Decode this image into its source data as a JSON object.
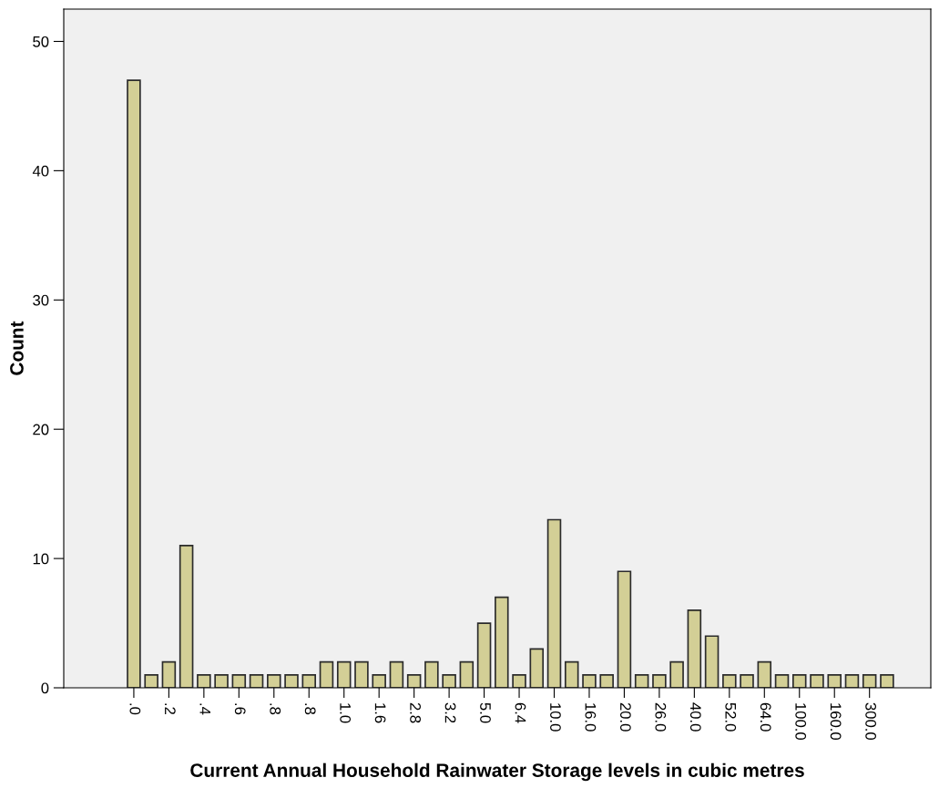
{
  "chart_data": {
    "type": "bar",
    "xlabel": "Current Annual Household Rainwater Storage levels in cubic metres",
    "ylabel": "Count",
    "categories": [
      ".0",
      null,
      ".2",
      null,
      ".4",
      null,
      ".6",
      null,
      ".8",
      null,
      ".8",
      null,
      "1.0",
      null,
      "1.6",
      null,
      "2.8",
      null,
      "3.2",
      null,
      "5.0",
      null,
      "6.4",
      null,
      "10.0",
      null,
      "16.0",
      null,
      "20.0",
      null,
      "26.0",
      null,
      "40.0",
      null,
      "52.0",
      null,
      "64.0",
      null,
      "100.0",
      null,
      "160.0",
      null,
      "300.0",
      null
    ],
    "values": [
      47,
      1,
      2,
      11,
      1,
      1,
      1,
      1,
      1,
      1,
      1,
      2,
      2,
      2,
      1,
      2,
      1,
      2,
      1,
      2,
      5,
      7,
      1,
      3,
      13,
      2,
      1,
      1,
      9,
      1,
      1,
      2,
      6,
      4,
      1,
      1,
      2,
      1,
      1,
      1,
      1,
      1,
      1,
      1
    ],
    "color": "#d3cf96",
    "ylim": [
      0,
      52.5
    ],
    "yticks": [
      0,
      10,
      20,
      30,
      40,
      50
    ],
    "grid": false
  }
}
